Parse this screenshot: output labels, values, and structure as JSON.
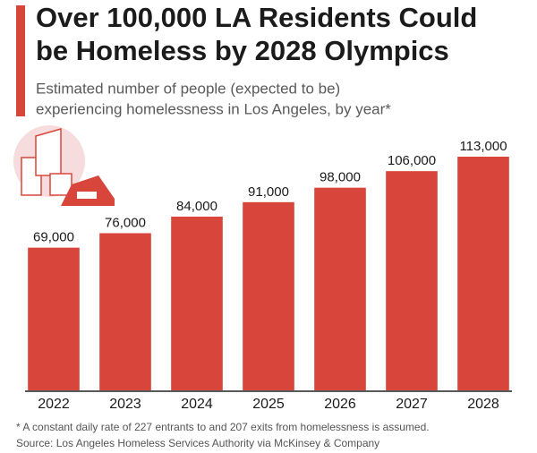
{
  "chart_data": {
    "type": "bar",
    "title_lines": [
      "Over 100,000 LA Residents Could",
      "be Homeless by 2028 Olympics"
    ],
    "subtitle_lines": [
      "Estimated number of people (expected to be)",
      "experiencing homelessness in Los Angeles, by year*"
    ],
    "categories": [
      "2022",
      "2023",
      "2024",
      "2025",
      "2026",
      "2027",
      "2028"
    ],
    "values": [
      69000,
      76000,
      84000,
      91000,
      98000,
      106000,
      113000
    ],
    "value_labels": [
      "69,000",
      "76,000",
      "84,000",
      "91,000",
      "98,000",
      "106,000",
      "113,000"
    ],
    "color": "#d8463b",
    "footnote": "* A constant daily rate of 227 entrants to and 207 exits from homelessness is assumed.",
    "source": "Source: Los Angeles Homeless Services Authority via McKinsey & Company"
  }
}
